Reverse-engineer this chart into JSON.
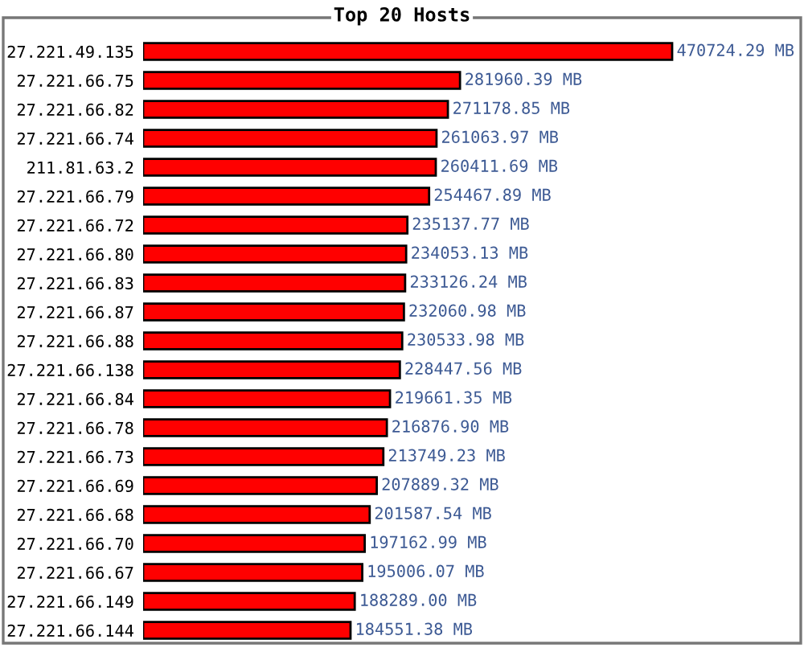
{
  "chart_data": {
    "type": "bar",
    "orientation": "horizontal",
    "title": "Top 20 Hosts",
    "categories": [
      "27.221.49.135",
      "27.221.66.75",
      "27.221.66.82",
      "27.221.66.74",
      "211.81.63.2",
      "27.221.66.79",
      "27.221.66.72",
      "27.221.66.80",
      "27.221.66.83",
      "27.221.66.87",
      "27.221.66.88",
      "27.221.66.138",
      "27.221.66.84",
      "27.221.66.78",
      "27.221.66.73",
      "27.221.66.69",
      "27.221.66.68",
      "27.221.66.70",
      "27.221.66.67",
      "27.221.66.149",
      "27.221.66.144"
    ],
    "values": [
      470724.29,
      281960.39,
      271178.85,
      261063.97,
      260411.69,
      254467.89,
      235137.77,
      234053.13,
      233126.24,
      232060.98,
      230533.98,
      228447.56,
      219661.35,
      216876.9,
      213749.23,
      207889.32,
      201587.54,
      197162.99,
      195006.07,
      188289.0,
      184551.38
    ],
    "value_labels": [
      "470724.29 MB",
      "281960.39 MB",
      "271178.85 MB",
      "261063.97 MB",
      "260411.69 MB",
      "254467.89 MB",
      "235137.77 MB",
      "234053.13 MB",
      "233126.24 MB",
      "232060.98 MB",
      "230533.98 MB",
      "228447.56 MB",
      "219661.35 MB",
      "216876.90 MB",
      "213749.23 MB",
      "207889.32 MB",
      "201587.54 MB",
      "197162.99 MB",
      "195006.07 MB",
      "188289.00 MB",
      "184551.38 MB"
    ],
    "color": "#ff0000",
    "grid": false,
    "legend": false
  }
}
